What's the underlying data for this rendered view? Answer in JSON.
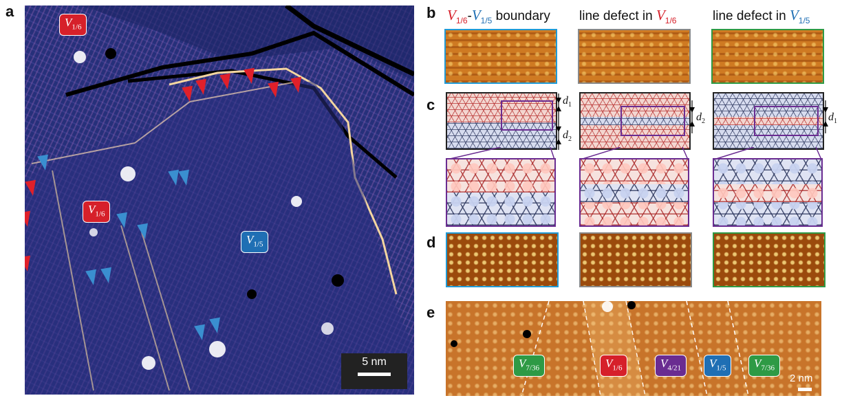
{
  "colors": {
    "red": "#d6202a",
    "blue": "#1f6fb4",
    "green": "#2e9a45",
    "purple": "#6a2c91",
    "grey_frame": "#888888"
  },
  "panels": {
    "a": {
      "letter": "a",
      "badges": [
        {
          "sym": "V",
          "sub": "1/6",
          "color": "red"
        },
        {
          "sym": "V",
          "sub": "1/6",
          "color": "red"
        },
        {
          "sym": "V",
          "sub": "1/5",
          "color": "blue"
        }
      ],
      "scale_bar": "5 nm"
    },
    "b": {
      "letter": "b",
      "titles": [
        {
          "v1": "V",
          "s1": "1/6",
          "dash": "-",
          "v2": "V",
          "s2": "1/5",
          "text": " boundary"
        },
        {
          "text": "line defect in ",
          "v": "V",
          "s": "1/6"
        },
        {
          "text": "line defect in ",
          "v": "V",
          "s": "1/5"
        }
      ]
    },
    "c": {
      "letter": "c",
      "labels": [
        {
          "d": "d",
          "sub": "1"
        },
        {
          "d": "d",
          "sub": "2"
        },
        {
          "d": "d",
          "sub": "2"
        },
        {
          "d": "d",
          "sub": "1"
        }
      ]
    },
    "d": {
      "letter": "d"
    },
    "e": {
      "letter": "e",
      "badges": [
        {
          "sym": "V",
          "sub": "7/36",
          "color": "green"
        },
        {
          "sym": "V",
          "sub": "1/6",
          "color": "red"
        },
        {
          "sym": "V",
          "sub": "4/21",
          "color": "purple"
        },
        {
          "sym": "V",
          "sub": "1/5",
          "color": "blue"
        },
        {
          "sym": "V",
          "sub": "7/36",
          "color": "green"
        }
      ],
      "scale_bar": "2 nm"
    }
  }
}
